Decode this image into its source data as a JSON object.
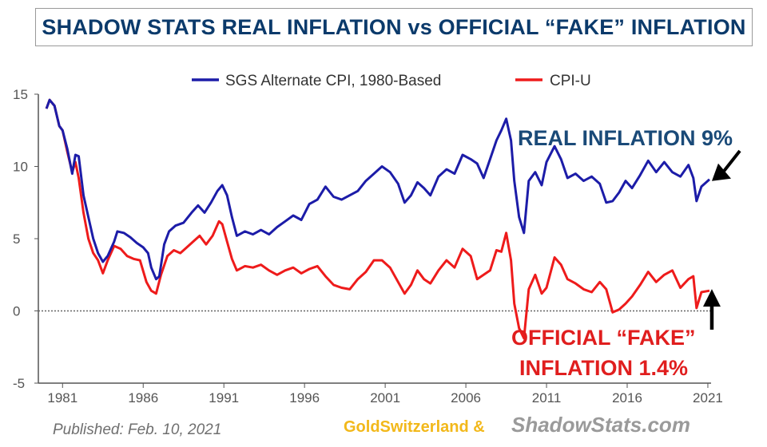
{
  "title": "SHADOW STATS REAL INFLATION vs OFFICIAL “FAKE” INFLATION",
  "chart_data": {
    "type": "line",
    "xlim": [
      1979.5,
      2021.2
    ],
    "ylim": [
      -5,
      15
    ],
    "x_ticks": [
      1981,
      1986,
      1991,
      1996,
      2001,
      2006,
      2011,
      2016,
      2021
    ],
    "x_tick_labels": [
      "1981",
      "1986",
      "1991",
      "1996",
      "2001",
      "2006",
      "2011",
      "2016",
      "2021"
    ],
    "y_ticks": [
      -5,
      0,
      5,
      10,
      15
    ],
    "y_tick_labels": [
      "-5",
      "0",
      "5",
      "10",
      "15"
    ],
    "zero_line": true,
    "series": [
      {
        "name": "SGS Alternate CPI, 1980-Based",
        "color": "#1c1ca8",
        "points": [
          [
            1980.0,
            14.0
          ],
          [
            1980.2,
            14.6
          ],
          [
            1980.5,
            14.2
          ],
          [
            1980.8,
            12.8
          ],
          [
            1981.0,
            12.5
          ],
          [
            1981.3,
            11.2
          ],
          [
            1981.6,
            9.5
          ],
          [
            1981.8,
            10.8
          ],
          [
            1982.0,
            10.7
          ],
          [
            1982.3,
            8.0
          ],
          [
            1982.6,
            6.5
          ],
          [
            1982.9,
            5.0
          ],
          [
            1983.2,
            4.0
          ],
          [
            1983.5,
            3.4
          ],
          [
            1983.8,
            3.8
          ],
          [
            1984.2,
            4.8
          ],
          [
            1984.4,
            5.5
          ],
          [
            1984.8,
            5.4
          ],
          [
            1985.2,
            5.1
          ],
          [
            1985.6,
            4.7
          ],
          [
            1986.0,
            4.4
          ],
          [
            1986.3,
            4.0
          ],
          [
            1986.5,
            3.0
          ],
          [
            1986.8,
            2.2
          ],
          [
            1987.0,
            2.4
          ],
          [
            1987.3,
            4.6
          ],
          [
            1987.6,
            5.5
          ],
          [
            1988.0,
            5.9
          ],
          [
            1988.5,
            6.1
          ],
          [
            1989.0,
            6.8
          ],
          [
            1989.4,
            7.3
          ],
          [
            1989.8,
            6.8
          ],
          [
            1990.2,
            7.5
          ],
          [
            1990.6,
            8.3
          ],
          [
            1990.9,
            8.7
          ],
          [
            1991.2,
            8.0
          ],
          [
            1991.5,
            6.5
          ],
          [
            1991.8,
            5.2
          ],
          [
            1992.3,
            5.5
          ],
          [
            1992.8,
            5.3
          ],
          [
            1993.3,
            5.6
          ],
          [
            1993.8,
            5.3
          ],
          [
            1994.3,
            5.8
          ],
          [
            1994.8,
            6.2
          ],
          [
            1995.3,
            6.6
          ],
          [
            1995.8,
            6.3
          ],
          [
            1996.3,
            7.4
          ],
          [
            1996.8,
            7.7
          ],
          [
            1997.3,
            8.6
          ],
          [
            1997.8,
            7.9
          ],
          [
            1998.3,
            7.7
          ],
          [
            1998.8,
            8.0
          ],
          [
            1999.3,
            8.3
          ],
          [
            1999.8,
            9.0
          ],
          [
            2000.3,
            9.5
          ],
          [
            2000.8,
            10.0
          ],
          [
            2001.3,
            9.6
          ],
          [
            2001.8,
            8.8
          ],
          [
            2002.2,
            7.5
          ],
          [
            2002.6,
            8.0
          ],
          [
            2003.0,
            8.9
          ],
          [
            2003.4,
            8.5
          ],
          [
            2003.8,
            8.0
          ],
          [
            2004.3,
            9.3
          ],
          [
            2004.8,
            9.8
          ],
          [
            2005.3,
            9.5
          ],
          [
            2005.8,
            10.8
          ],
          [
            2006.3,
            10.5
          ],
          [
            2006.7,
            10.2
          ],
          [
            2007.1,
            9.2
          ],
          [
            2007.5,
            10.5
          ],
          [
            2007.9,
            11.8
          ],
          [
            2008.2,
            12.5
          ],
          [
            2008.5,
            13.3
          ],
          [
            2008.8,
            11.8
          ],
          [
            2009.0,
            9.0
          ],
          [
            2009.3,
            6.5
          ],
          [
            2009.6,
            5.4
          ],
          [
            2009.9,
            9.0
          ],
          [
            2010.3,
            9.6
          ],
          [
            2010.7,
            8.7
          ],
          [
            2011.0,
            10.3
          ],
          [
            2011.5,
            11.4
          ],
          [
            2011.9,
            10.5
          ],
          [
            2012.3,
            9.2
          ],
          [
            2012.8,
            9.5
          ],
          [
            2013.3,
            9.0
          ],
          [
            2013.8,
            9.3
          ],
          [
            2014.3,
            8.8
          ],
          [
            2014.7,
            7.5
          ],
          [
            2015.1,
            7.6
          ],
          [
            2015.5,
            8.2
          ],
          [
            2015.9,
            9.0
          ],
          [
            2016.3,
            8.5
          ],
          [
            2016.8,
            9.4
          ],
          [
            2017.3,
            10.4
          ],
          [
            2017.8,
            9.6
          ],
          [
            2018.3,
            10.3
          ],
          [
            2018.8,
            9.6
          ],
          [
            2019.3,
            9.3
          ],
          [
            2019.8,
            10.1
          ],
          [
            2020.1,
            9.2
          ],
          [
            2020.3,
            7.6
          ],
          [
            2020.6,
            8.6
          ],
          [
            2021.1,
            9.1
          ]
        ]
      },
      {
        "name": "CPI-U",
        "color": "#ee1b1b",
        "points": [
          [
            1980.0,
            14.0
          ],
          [
            1980.2,
            14.6
          ],
          [
            1980.5,
            14.2
          ],
          [
            1980.8,
            12.8
          ],
          [
            1981.0,
            12.5
          ],
          [
            1981.3,
            11.0
          ],
          [
            1981.6,
            9.6
          ],
          [
            1981.8,
            10.3
          ],
          [
            1982.0,
            9.2
          ],
          [
            1982.3,
            6.8
          ],
          [
            1982.6,
            5.0
          ],
          [
            1982.9,
            4.0
          ],
          [
            1983.2,
            3.5
          ],
          [
            1983.5,
            2.6
          ],
          [
            1983.8,
            3.5
          ],
          [
            1984.2,
            4.5
          ],
          [
            1984.6,
            4.3
          ],
          [
            1985.0,
            3.8
          ],
          [
            1985.4,
            3.6
          ],
          [
            1985.8,
            3.5
          ],
          [
            1986.2,
            2.0
          ],
          [
            1986.5,
            1.4
          ],
          [
            1986.8,
            1.2
          ],
          [
            1987.1,
            2.5
          ],
          [
            1987.5,
            3.8
          ],
          [
            1987.9,
            4.2
          ],
          [
            1988.3,
            4.0
          ],
          [
            1988.7,
            4.4
          ],
          [
            1989.1,
            4.8
          ],
          [
            1989.5,
            5.2
          ],
          [
            1989.9,
            4.6
          ],
          [
            1990.3,
            5.2
          ],
          [
            1990.7,
            6.2
          ],
          [
            1990.9,
            6.0
          ],
          [
            1991.2,
            4.8
          ],
          [
            1991.5,
            3.6
          ],
          [
            1991.8,
            2.8
          ],
          [
            1992.3,
            3.1
          ],
          [
            1992.8,
            3.0
          ],
          [
            1993.3,
            3.2
          ],
          [
            1993.8,
            2.8
          ],
          [
            1994.3,
            2.5
          ],
          [
            1994.8,
            2.8
          ],
          [
            1995.3,
            3.0
          ],
          [
            1995.8,
            2.6
          ],
          [
            1996.3,
            2.9
          ],
          [
            1996.8,
            3.1
          ],
          [
            1997.3,
            2.4
          ],
          [
            1997.8,
            1.8
          ],
          [
            1998.3,
            1.6
          ],
          [
            1998.8,
            1.5
          ],
          [
            1999.3,
            2.2
          ],
          [
            1999.8,
            2.7
          ],
          [
            2000.3,
            3.5
          ],
          [
            2000.8,
            3.5
          ],
          [
            2001.3,
            3.0
          ],
          [
            2001.8,
            2.0
          ],
          [
            2002.2,
            1.2
          ],
          [
            2002.6,
            1.8
          ],
          [
            2003.0,
            2.8
          ],
          [
            2003.4,
            2.2
          ],
          [
            2003.8,
            1.9
          ],
          [
            2004.3,
            2.8
          ],
          [
            2004.8,
            3.5
          ],
          [
            2005.3,
            3.0
          ],
          [
            2005.8,
            4.3
          ],
          [
            2006.3,
            3.8
          ],
          [
            2006.7,
            2.2
          ],
          [
            2007.1,
            2.5
          ],
          [
            2007.5,
            2.8
          ],
          [
            2007.9,
            4.2
          ],
          [
            2008.2,
            4.1
          ],
          [
            2008.5,
            5.4
          ],
          [
            2008.8,
            3.5
          ],
          [
            2009.0,
            0.5
          ],
          [
            2009.3,
            -1.2
          ],
          [
            2009.6,
            -1.9
          ],
          [
            2009.9,
            1.5
          ],
          [
            2010.3,
            2.5
          ],
          [
            2010.7,
            1.2
          ],
          [
            2011.0,
            1.6
          ],
          [
            2011.5,
            3.7
          ],
          [
            2011.9,
            3.2
          ],
          [
            2012.3,
            2.2
          ],
          [
            2012.8,
            1.9
          ],
          [
            2013.3,
            1.5
          ],
          [
            2013.8,
            1.3
          ],
          [
            2014.3,
            2.0
          ],
          [
            2014.7,
            1.5
          ],
          [
            2015.1,
            -0.1
          ],
          [
            2015.5,
            0.1
          ],
          [
            2015.9,
            0.5
          ],
          [
            2016.3,
            1.0
          ],
          [
            2016.8,
            1.8
          ],
          [
            2017.3,
            2.7
          ],
          [
            2017.8,
            2.0
          ],
          [
            2018.3,
            2.5
          ],
          [
            2018.8,
            2.8
          ],
          [
            2019.3,
            1.6
          ],
          [
            2019.8,
            2.2
          ],
          [
            2020.1,
            2.4
          ],
          [
            2020.3,
            0.2
          ],
          [
            2020.6,
            1.3
          ],
          [
            2021.1,
            1.4
          ]
        ]
      }
    ],
    "annotations": [
      {
        "text": "REAL INFLATION 9%",
        "color": "#1a4a78",
        "arrow_to": [
          2021.0,
          9.1
        ]
      },
      {
        "text": "OFFICIAL “FAKE”",
        "color": "#e01e1e",
        "arrow_to": [
          2021.0,
          1.4
        ]
      },
      {
        "text": "INFLATION 1.4%",
        "color": "#e01e1e"
      }
    ],
    "legend_position": "top"
  },
  "footer": {
    "published": "Published: Feb. 10, 2021",
    "brand_gold": "GoldSwitzerland &",
    "brand_shadowstats": "ShadowStats.com"
  }
}
